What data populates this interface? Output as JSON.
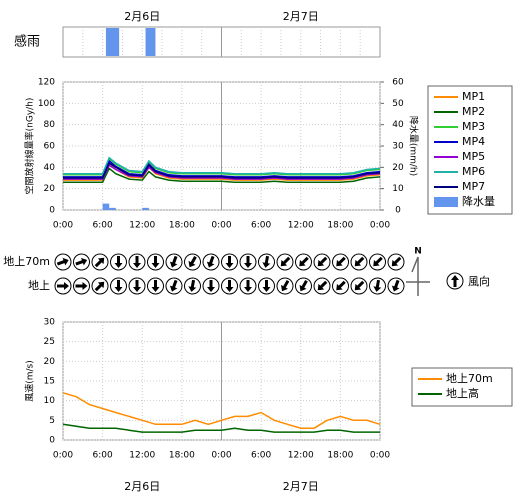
{
  "chart_data": [
    {
      "type": "timeline",
      "label": "感雨",
      "dates": [
        "2月6日",
        "2月7日"
      ],
      "date_positions": [
        12,
        36
      ],
      "xlim": [
        0,
        48
      ],
      "grid_x": [
        3,
        6,
        9,
        12,
        15,
        18,
        21,
        24,
        27,
        30,
        33,
        36,
        39,
        42,
        45
      ],
      "color": "#6495ed",
      "periods": [
        {
          "start": 6.5,
          "end": 8.5
        },
        {
          "start": 12.5,
          "end": 14
        }
      ]
    },
    {
      "type": "line",
      "ylabel": "空間放射線量率(nGy/h)",
      "y2label": "降水量(mm/h)",
      "xlim": [
        0,
        48
      ],
      "ylim": [
        0,
        120
      ],
      "y2lim": [
        0,
        60
      ],
      "yticks": [
        0,
        20,
        40,
        60,
        80,
        100,
        120
      ],
      "y2ticks": [
        0,
        10,
        20,
        30,
        40,
        50,
        60
      ],
      "xticks": [
        {
          "value": 0,
          "label": "0:00"
        },
        {
          "value": 6,
          "label": "6:00"
        },
        {
          "value": 12,
          "label": "12:00"
        },
        {
          "value": 18,
          "label": "18:00"
        },
        {
          "value": 24,
          "label": "0:00"
        },
        {
          "value": 30,
          "label": "6:00"
        },
        {
          "value": 36,
          "label": "12:00"
        },
        {
          "value": 42,
          "label": "18:00"
        },
        {
          "value": 48,
          "label": "0:00"
        }
      ],
      "grid": true,
      "x": [
        0,
        2,
        4,
        6,
        7,
        8,
        10,
        12,
        13,
        14,
        16,
        18,
        20,
        22,
        24,
        26,
        28,
        30,
        32,
        34,
        36,
        38,
        40,
        42,
        44,
        46,
        48
      ],
      "series": [
        {
          "name": "MP1",
          "color": "#ff8c00",
          "values": [
            28,
            28,
            28,
            28,
            43,
            38,
            31,
            30,
            40,
            34,
            30,
            29,
            29,
            29,
            29,
            28,
            28,
            28,
            29,
            28,
            28,
            28,
            28,
            28,
            29,
            32,
            33
          ]
        },
        {
          "name": "MP2",
          "color": "#006400",
          "values": [
            26,
            26,
            26,
            26,
            39,
            34,
            29,
            28,
            36,
            31,
            28,
            27,
            27,
            27,
            27,
            26,
            26,
            26,
            27,
            26,
            26,
            26,
            26,
            26,
            27,
            30,
            31
          ]
        },
        {
          "name": "MP3",
          "color": "#32cd32",
          "values": [
            33,
            33,
            33,
            33,
            48,
            43,
            36,
            35,
            45,
            39,
            35,
            34,
            34,
            34,
            34,
            33,
            33,
            33,
            34,
            33,
            33,
            33,
            33,
            33,
            34,
            37,
            38
          ]
        },
        {
          "name": "MP4",
          "color": "#0000cd",
          "values": [
            31,
            31,
            31,
            31,
            46,
            41,
            34,
            33,
            43,
            37,
            33,
            32,
            32,
            32,
            32,
            31,
            31,
            31,
            32,
            31,
            31,
            31,
            31,
            31,
            32,
            35,
            36
          ]
        },
        {
          "name": "MP5",
          "color": "#9400d3",
          "values": [
            29,
            29,
            29,
            29,
            42,
            38,
            32,
            31,
            40,
            35,
            31,
            30,
            30,
            30,
            30,
            29,
            29,
            29,
            30,
            29,
            29,
            29,
            29,
            29,
            30,
            33,
            34
          ]
        },
        {
          "name": "MP6",
          "color": "#20b2aa",
          "values": [
            34,
            34,
            34,
            34,
            49,
            44,
            37,
            36,
            46,
            40,
            36,
            35,
            35,
            35,
            35,
            34,
            34,
            34,
            35,
            34,
            34,
            34,
            34,
            34,
            35,
            38,
            39
          ]
        },
        {
          "name": "MP7",
          "color": "#000080",
          "values": [
            30,
            30,
            30,
            30,
            44,
            40,
            33,
            32,
            42,
            36,
            32,
            31,
            31,
            31,
            31,
            30,
            30,
            30,
            31,
            30,
            30,
            30,
            30,
            30,
            31,
            34,
            35
          ]
        }
      ],
      "bars": {
        "name": "降水量",
        "color": "#6495ed",
        "axis": "y2",
        "x": [
          6,
          7,
          12
        ],
        "values": [
          3,
          1,
          1
        ]
      }
    },
    {
      "type": "arrow",
      "legend_label": "風向",
      "north_label": "N",
      "rows": [
        {
          "name": "地上70m",
          "directions": [
            70,
            70,
            45,
            180,
            180,
            180,
            200,
            210,
            200,
            180,
            180,
            190,
            225,
            225,
            225,
            225,
            225,
            225,
            225
          ]
        },
        {
          "name": "地上",
          "directions": [
            90,
            90,
            45,
            180,
            180,
            180,
            200,
            190,
            180,
            180,
            180,
            180,
            210,
            210,
            225,
            225,
            225,
            190,
            200
          ]
        }
      ]
    },
    {
      "type": "line",
      "ylabel": "風速(m/s)",
      "dates": [
        "2月6日",
        "2月7日"
      ],
      "date_positions": [
        12,
        36
      ],
      "xlim": [
        0,
        48
      ],
      "ylim": [
        0,
        30
      ],
      "yticks": [
        0,
        5,
        10,
        15,
        20,
        25,
        30
      ],
      "xticks": [
        {
          "value": 0,
          "label": "0:00"
        },
        {
          "value": 6,
          "label": "6:00"
        },
        {
          "value": 12,
          "label": "12:00"
        },
        {
          "value": 18,
          "label": "18:00"
        },
        {
          "value": 24,
          "label": "0:00"
        },
        {
          "value": 30,
          "label": "6:00"
        },
        {
          "value": 36,
          "label": "12:00"
        },
        {
          "value": 42,
          "label": "18:00"
        },
        {
          "value": 48,
          "label": "0:00"
        }
      ],
      "grid": true,
      "x": [
        0,
        2,
        4,
        6,
        8,
        10,
        12,
        14,
        16,
        18,
        20,
        22,
        24,
        26,
        28,
        30,
        32,
        34,
        36,
        38,
        40,
        42,
        44,
        46,
        48
      ],
      "series": [
        {
          "name": "地上70m",
          "color": "#ff8c00",
          "values": [
            12,
            11,
            9,
            8,
            7,
            6,
            5,
            4,
            4,
            4,
            5,
            4,
            5,
            6,
            6,
            7,
            5,
            4,
            3,
            3,
            5,
            6,
            5,
            5,
            4
          ]
        },
        {
          "name": "地上高",
          "color": "#006400",
          "values": [
            4,
            3.5,
            3,
            3,
            3,
            2.5,
            2,
            2,
            2,
            2,
            2.5,
            2.5,
            2.5,
            3,
            2.5,
            2.5,
            2,
            2,
            2,
            2,
            2.5,
            2.5,
            2,
            2,
            2
          ]
        }
      ]
    }
  ]
}
